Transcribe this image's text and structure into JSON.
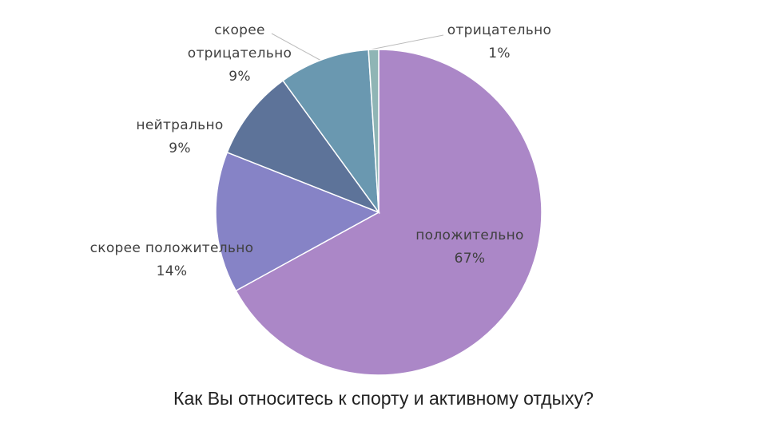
{
  "chart_data": {
    "type": "pie",
    "title": "Как Вы относитесь к спорту и активному отдыху?",
    "categories": [
      "положительно",
      "скорее положительно",
      "нейтрально",
      "скорее отрицательно",
      "отрицательно"
    ],
    "values": [
      67,
      14,
      9,
      9,
      1
    ],
    "value_labels": [
      "67%",
      "14%",
      "9%",
      "9%",
      "1%"
    ],
    "colors": [
      "#ab87c7",
      "#8683c6",
      "#5d7399",
      "#6a98b0",
      "#8fb5b5"
    ]
  }
}
